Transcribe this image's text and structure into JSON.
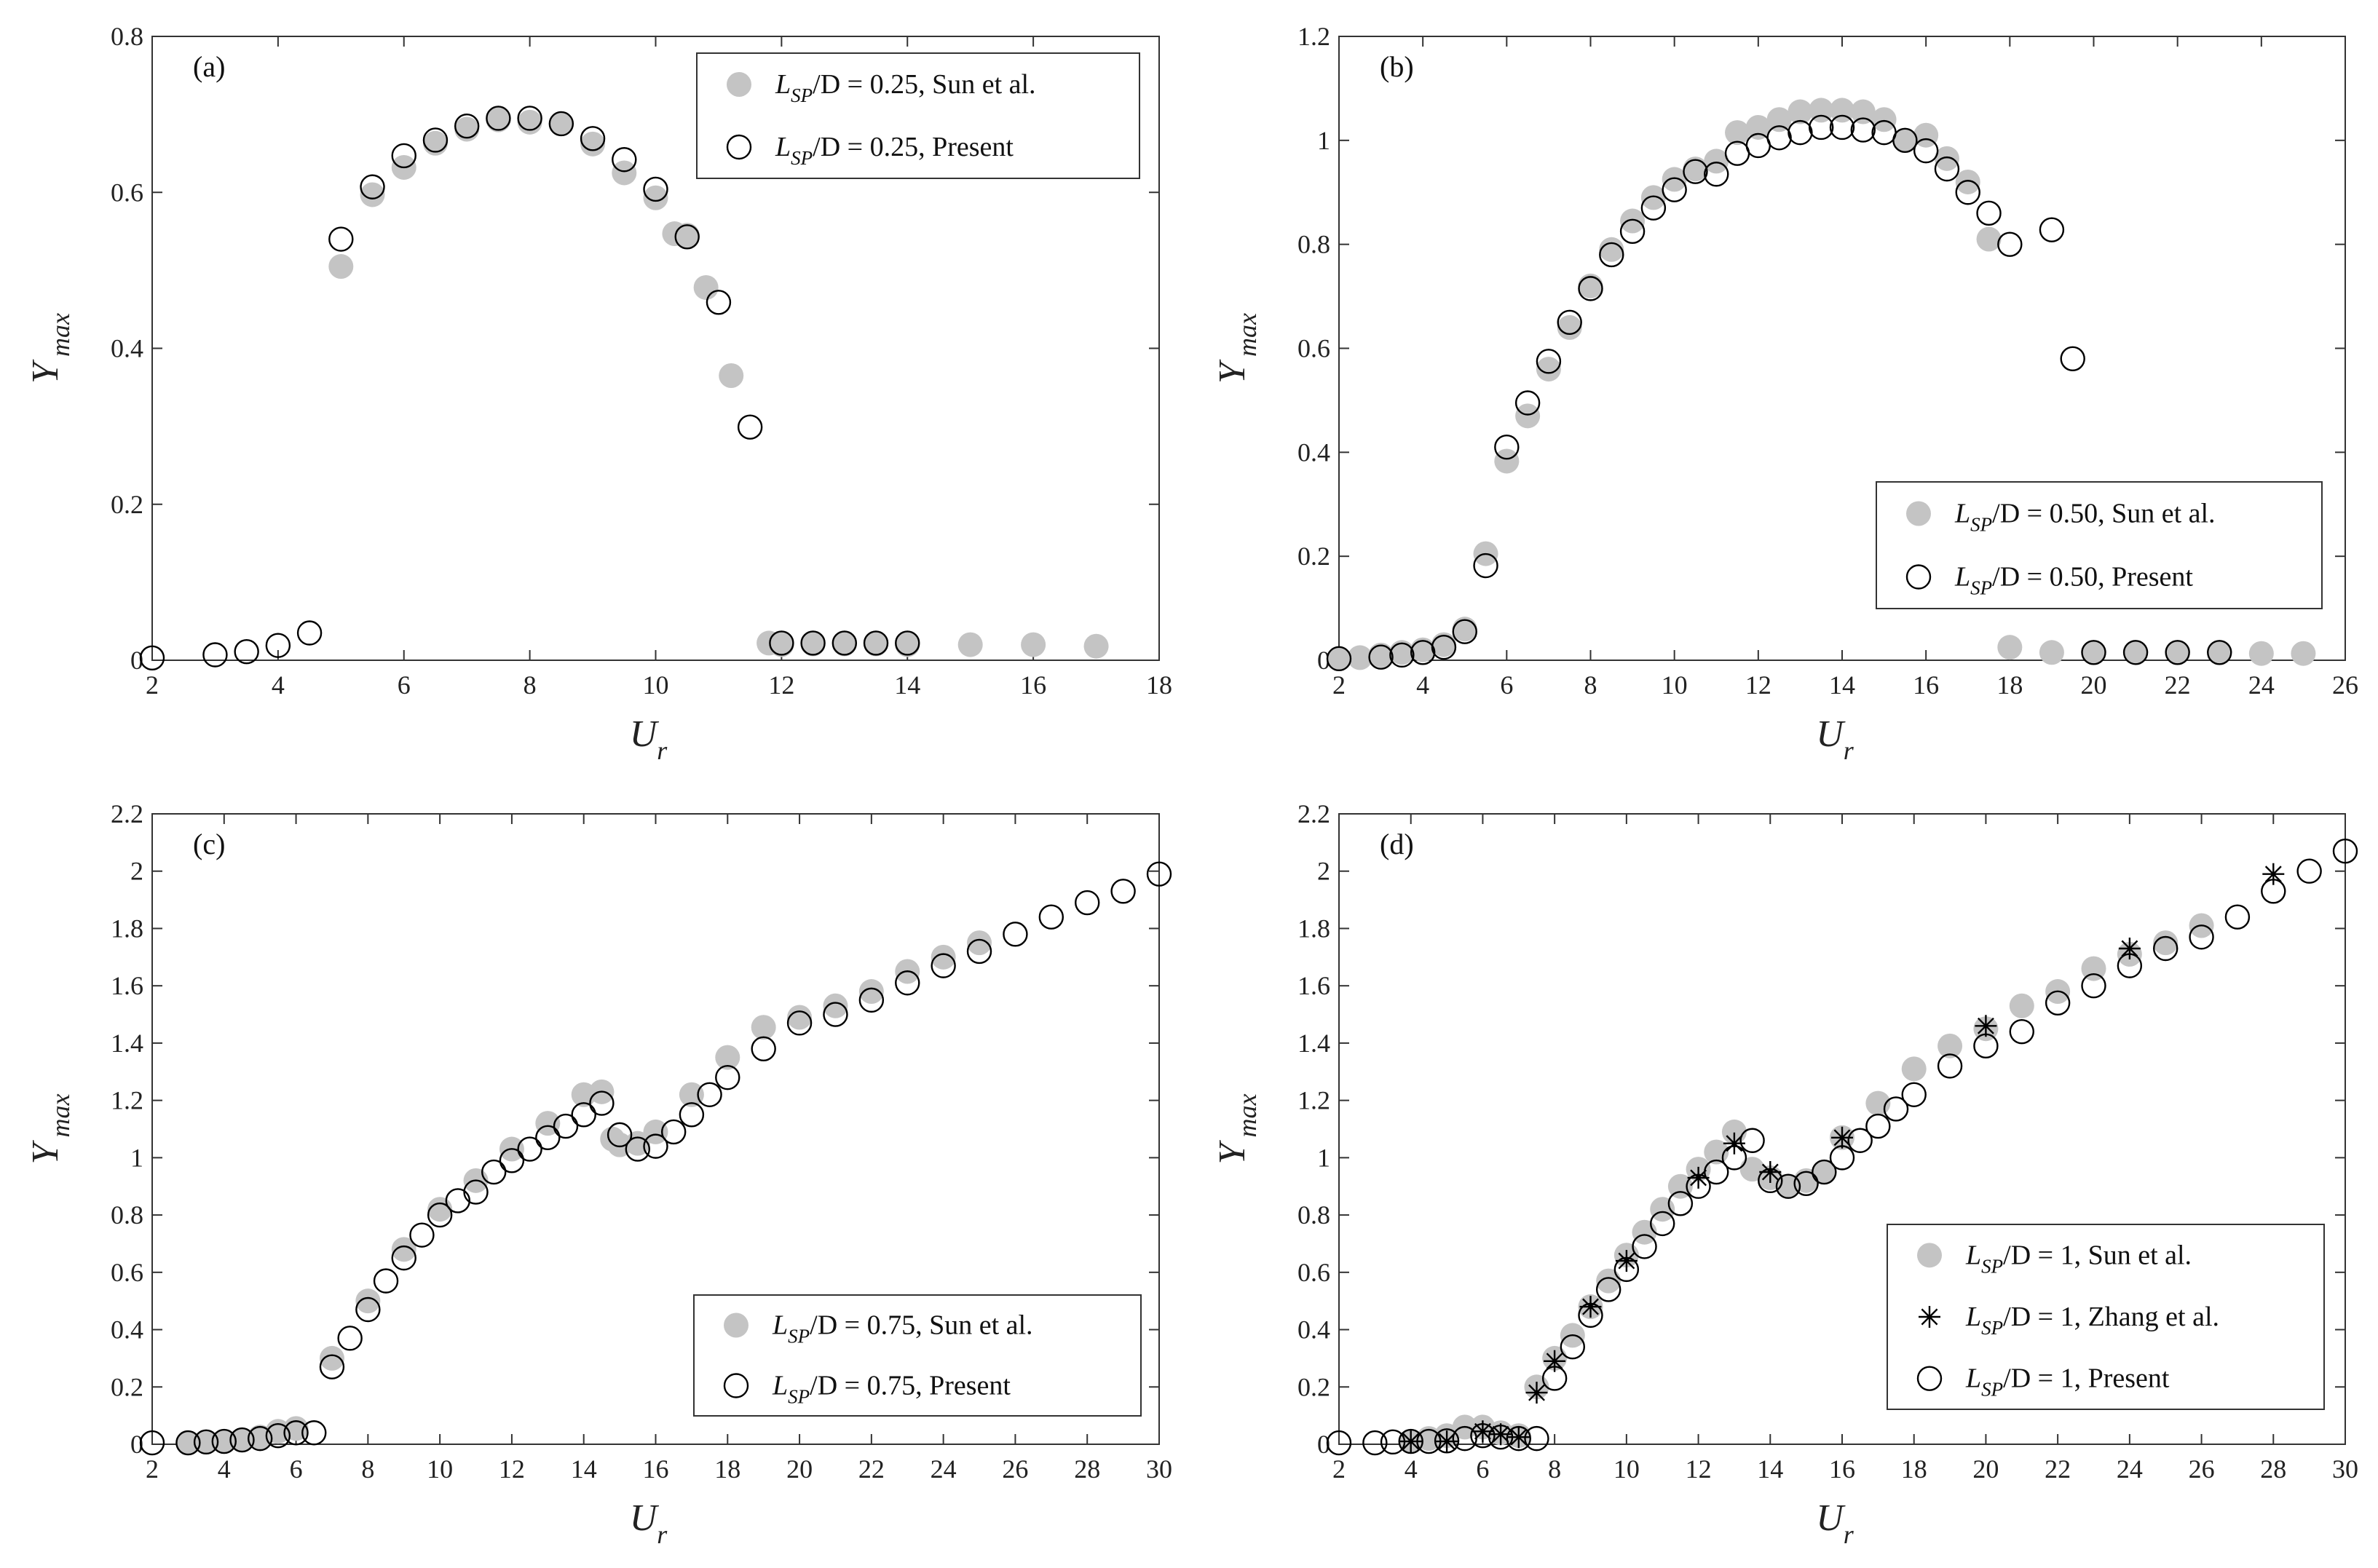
{
  "chart_data": [
    {
      "type": "scatter",
      "panel_label": "(a)",
      "xlabel": "U",
      "xlabel_sub": "r",
      "ylabel": "Y",
      "ylabel_sub": "max",
      "xlim": [
        2,
        18
      ],
      "ylim": [
        0,
        0.8
      ],
      "xticks": [
        "2",
        "4",
        "6",
        "8",
        "10",
        "12",
        "14",
        "16",
        "18"
      ],
      "yticks": [
        "0",
        "0.2",
        "0.4",
        "0.6",
        "0.8"
      ],
      "legend_position": "top-right",
      "series": [
        {
          "name": "L_SP/D = 0.25, Sun et al.",
          "marker": "filled-circle",
          "color": "#c4c4c4",
          "legend": {
            "prefix": "L",
            "sub": "SP",
            "rest": "/D = 0.25, Sun et al."
          },
          "x": [
            5.0,
            5.5,
            6.0,
            6.5,
            7.0,
            7.5,
            8.0,
            8.5,
            9.0,
            9.5,
            10.0,
            10.3,
            10.5,
            10.8,
            11.2,
            11.8,
            12.0,
            12.5,
            13.0,
            13.5,
            14.0,
            15.0,
            16.0,
            17.0
          ],
          "y": [
            0.505,
            0.597,
            0.632,
            0.663,
            0.681,
            0.693,
            0.69,
            0.688,
            0.662,
            0.625,
            0.593,
            0.547,
            0.545,
            0.478,
            0.365,
            0.022,
            0.02,
            0.021,
            0.021,
            0.021,
            0.02,
            0.02,
            0.02,
            0.018
          ]
        },
        {
          "name": "L_SP/D = 0.25, Present",
          "marker": "open-circle",
          "color": "#000000",
          "legend": {
            "prefix": "L",
            "sub": "SP",
            "rest": "/D = 0.25, Present"
          },
          "x": [
            2.0,
            3.0,
            3.5,
            4.0,
            4.5,
            5.0,
            5.5,
            6.0,
            6.5,
            7.0,
            7.5,
            8.0,
            8.5,
            9.0,
            9.5,
            10.0,
            10.5,
            11.0,
            11.5,
            12.0,
            12.5,
            13.0,
            13.5,
            14.0
          ],
          "y": [
            0.003,
            0.007,
            0.011,
            0.019,
            0.035,
            0.54,
            0.607,
            0.647,
            0.667,
            0.685,
            0.695,
            0.695,
            0.688,
            0.669,
            0.642,
            0.604,
            0.543,
            0.459,
            0.299,
            0.022,
            0.022,
            0.022,
            0.022,
            0.022
          ]
        }
      ]
    },
    {
      "type": "scatter",
      "panel_label": "(b)",
      "xlabel": "U",
      "xlabel_sub": "r",
      "ylabel": "Y",
      "ylabel_sub": "max",
      "xlim": [
        2,
        26
      ],
      "ylim": [
        0,
        1.2
      ],
      "xticks": [
        "2",
        "4",
        "6",
        "8",
        "10",
        "12",
        "14",
        "16",
        "18",
        "20",
        "22",
        "24",
        "26"
      ],
      "yticks": [
        "0",
        "0.2",
        "0.4",
        "0.6",
        "0.8",
        "1",
        "1.2"
      ],
      "legend_position": "lower-right",
      "series": [
        {
          "name": "L_SP/D = 0.50, Sun et al.",
          "marker": "filled-circle",
          "color": "#c4c4c4",
          "legend": {
            "prefix": "L",
            "sub": "SP",
            "rest": "/D = 0.50, Sun et al."
          },
          "x": [
            2.0,
            2.5,
            3.0,
            3.5,
            4.0,
            4.5,
            5.0,
            5.5,
            6.0,
            6.5,
            7.0,
            7.5,
            8.0,
            8.5,
            9.0,
            9.5,
            10.0,
            10.5,
            11.0,
            11.5,
            12.0,
            12.5,
            13.0,
            13.5,
            14.0,
            14.5,
            15.0,
            15.5,
            16.0,
            16.5,
            17.0,
            17.5,
            18.0,
            19.0,
            20.0,
            21.0,
            22.0,
            23.0,
            24.0,
            25.0
          ],
          "y": [
            0.003,
            0.005,
            0.01,
            0.015,
            0.02,
            0.03,
            0.06,
            0.205,
            0.383,
            0.47,
            0.56,
            0.64,
            0.72,
            0.79,
            0.845,
            0.89,
            0.925,
            0.945,
            0.96,
            1.015,
            1.025,
            1.04,
            1.055,
            1.058,
            1.058,
            1.055,
            1.04,
            1.0,
            1.01,
            0.965,
            0.92,
            0.81,
            0.025,
            0.015,
            0.015,
            0.015,
            0.015,
            0.015,
            0.013,
            0.013
          ]
        },
        {
          "name": "L_SP/D = 0.50, Present",
          "marker": "open-circle",
          "color": "#000000",
          "legend": {
            "prefix": "L",
            "sub": "SP",
            "rest": "/D = 0.50, Present"
          },
          "x": [
            2.0,
            3.0,
            3.5,
            4.0,
            4.5,
            5.0,
            5.5,
            6.0,
            6.5,
            7.0,
            7.5,
            8.0,
            8.5,
            9.0,
            9.5,
            10.0,
            10.5,
            11.0,
            11.5,
            12.0,
            12.5,
            13.0,
            13.5,
            14.0,
            14.5,
            15.0,
            15.5,
            16.0,
            16.5,
            17.0,
            17.5,
            18.0,
            19.0,
            19.5,
            20.0,
            21.0,
            22.0,
            23.0
          ],
          "y": [
            0.003,
            0.006,
            0.01,
            0.015,
            0.025,
            0.055,
            0.182,
            0.41,
            0.495,
            0.575,
            0.65,
            0.715,
            0.78,
            0.825,
            0.87,
            0.905,
            0.94,
            0.935,
            0.975,
            0.99,
            1.005,
            1.015,
            1.025,
            1.025,
            1.02,
            1.015,
            1.0,
            0.98,
            0.945,
            0.9,
            0.86,
            0.8,
            0.828,
            0.58,
            0.015,
            0.015,
            0.015,
            0.015
          ]
        }
      ]
    },
    {
      "type": "scatter",
      "panel_label": "(c)",
      "xlabel": "U",
      "xlabel_sub": "r",
      "ylabel": "Y",
      "ylabel_sub": "max",
      "xlim": [
        2,
        30
      ],
      "ylim": [
        0,
        2.2
      ],
      "xticks": [
        "2",
        "4",
        "6",
        "8",
        "10",
        "12",
        "14",
        "16",
        "18",
        "20",
        "22",
        "24",
        "26",
        "28",
        "30"
      ],
      "yticks": [
        "0",
        "0.2",
        "0.4",
        "0.6",
        "0.8",
        "1",
        "1.2",
        "1.4",
        "1.6",
        "1.8",
        "2",
        "2.2"
      ],
      "legend_position": "lower-right",
      "series": [
        {
          "name": "L_SP/D = 0.75, Sun et al.",
          "marker": "filled-circle",
          "color": "#c4c4c4",
          "legend": {
            "prefix": "L",
            "sub": "SP",
            "rest": "/D = 0.75, Sun et al."
          },
          "x": [
            3.0,
            3.5,
            4.0,
            4.5,
            5.0,
            5.5,
            6.0,
            7.0,
            8.0,
            9.0,
            10.0,
            11.0,
            12.0,
            13.0,
            14.0,
            14.5,
            14.8,
            15.0,
            15.5,
            16.0,
            17.0,
            18.0,
            19.0,
            20.0,
            21.0,
            22.0,
            23.0,
            24.0,
            25.0
          ],
          "y": [
            0.005,
            0.008,
            0.01,
            0.015,
            0.025,
            0.045,
            0.055,
            0.3,
            0.5,
            0.68,
            0.82,
            0.92,
            1.03,
            1.12,
            1.22,
            1.23,
            1.065,
            1.045,
            1.05,
            1.09,
            1.22,
            1.35,
            1.455,
            1.49,
            1.53,
            1.58,
            1.65,
            1.7,
            1.75
          ]
        },
        {
          "name": "L_SP/D = 0.75, Present",
          "marker": "open-circle",
          "color": "#000000",
          "legend": {
            "prefix": "L",
            "sub": "SP",
            "rest": "/D = 0.75, Present"
          },
          "x": [
            2.0,
            3.0,
            3.5,
            4.0,
            4.5,
            5.0,
            5.5,
            6.0,
            6.5,
            7.0,
            7.5,
            8.0,
            8.5,
            9.0,
            9.5,
            10.0,
            10.5,
            11.0,
            11.5,
            12.0,
            12.5,
            13.0,
            13.5,
            14.0,
            14.5,
            15.0,
            15.5,
            16.0,
            16.5,
            17.0,
            17.5,
            18.0,
            19.0,
            20.0,
            21.0,
            22.0,
            23.0,
            24.0,
            25.0,
            26.0,
            27.0,
            28.0,
            29.0,
            30.0
          ],
          "y": [
            0.005,
            0.005,
            0.008,
            0.01,
            0.015,
            0.02,
            0.03,
            0.04,
            0.04,
            0.27,
            0.37,
            0.47,
            0.57,
            0.65,
            0.73,
            0.8,
            0.85,
            0.88,
            0.95,
            0.99,
            1.03,
            1.07,
            1.11,
            1.15,
            1.19,
            1.08,
            1.03,
            1.04,
            1.09,
            1.15,
            1.22,
            1.28,
            1.38,
            1.47,
            1.5,
            1.55,
            1.61,
            1.67,
            1.72,
            1.78,
            1.84,
            1.89,
            1.93,
            1.99
          ]
        }
      ]
    },
    {
      "type": "scatter",
      "panel_label": "(d)",
      "xlabel": "U",
      "xlabel_sub": "r",
      "ylabel": "Y",
      "ylabel_sub": "max",
      "xlim": [
        2,
        30
      ],
      "ylim": [
        0,
        2.2
      ],
      "xticks": [
        "2",
        "4",
        "6",
        "8",
        "10",
        "12",
        "14",
        "16",
        "18",
        "20",
        "22",
        "24",
        "26",
        "28",
        "30"
      ],
      "yticks": [
        "0",
        "0.2",
        "0.4",
        "0.6",
        "0.8",
        "1",
        "1.2",
        "1.4",
        "1.6",
        "1.8",
        "2",
        "2.2"
      ],
      "legend_position": "lower-right",
      "series": [
        {
          "name": "L_SP/D = 1, Sun et al.",
          "marker": "filled-circle",
          "color": "#c4c4c4",
          "legend": {
            "prefix": "L",
            "sub": "SP",
            "rest": "/D = 1, Sun et al."
          },
          "x": [
            4.0,
            4.5,
            5.0,
            5.5,
            6.0,
            6.5,
            7.0,
            7.5,
            8.0,
            8.5,
            9.0,
            9.5,
            10.0,
            10.5,
            11.0,
            11.5,
            12.0,
            12.5,
            13.0,
            13.5,
            14.0,
            14.5,
            15.0,
            15.5,
            16.0,
            17.0,
            18.0,
            19.0,
            20.0,
            21.0,
            22.0,
            23.0,
            24.0,
            25.0,
            26.0
          ],
          "y": [
            0.01,
            0.02,
            0.03,
            0.06,
            0.06,
            0.04,
            0.03,
            0.2,
            0.3,
            0.38,
            0.48,
            0.57,
            0.66,
            0.74,
            0.82,
            0.9,
            0.96,
            1.02,
            1.09,
            0.96,
            0.93,
            0.9,
            0.92,
            0.95,
            1.07,
            1.19,
            1.31,
            1.39,
            1.45,
            1.53,
            1.58,
            1.66,
            1.71,
            1.75,
            1.81
          ]
        },
        {
          "name": "L_SP/D = 1, Zhang et al.",
          "marker": "asterisk",
          "color": "#000000",
          "legend": {
            "prefix": "L",
            "sub": "SP",
            "rest": "/D = 1, Zhang et al."
          },
          "x": [
            4.0,
            5.0,
            6.0,
            6.5,
            7.0,
            7.5,
            8.0,
            9.0,
            10.0,
            12.0,
            13.0,
            14.0,
            16.0,
            20.0,
            24.0,
            28.0
          ],
          "y": [
            0.01,
            0.01,
            0.045,
            0.035,
            0.025,
            0.18,
            0.29,
            0.48,
            0.64,
            0.93,
            1.05,
            0.95,
            1.07,
            1.46,
            1.73,
            1.99
          ]
        },
        {
          "name": "L_SP/D = 1, Present",
          "marker": "open-circle",
          "color": "#000000",
          "legend": {
            "prefix": "L",
            "sub": "SP",
            "rest": "/D = 1, Present"
          },
          "x": [
            2.0,
            3.0,
            3.5,
            4.0,
            4.5,
            5.0,
            5.5,
            6.0,
            6.5,
            7.0,
            7.5,
            8.0,
            8.5,
            9.0,
            9.5,
            10.0,
            10.5,
            11.0,
            11.5,
            12.0,
            12.5,
            13.0,
            13.5,
            14.0,
            14.5,
            15.0,
            15.5,
            16.0,
            16.5,
            17.0,
            17.5,
            18.0,
            19.0,
            20.0,
            21.0,
            22.0,
            23.0,
            24.0,
            25.0,
            26.0,
            27.0,
            28.0,
            29.0,
            30.0
          ],
          "y": [
            0.005,
            0.005,
            0.008,
            0.01,
            0.01,
            0.012,
            0.02,
            0.03,
            0.025,
            0.02,
            0.02,
            0.23,
            0.34,
            0.45,
            0.54,
            0.61,
            0.69,
            0.77,
            0.84,
            0.9,
            0.95,
            1.0,
            1.06,
            0.92,
            0.9,
            0.91,
            0.95,
            1.0,
            1.06,
            1.11,
            1.17,
            1.22,
            1.32,
            1.39,
            1.44,
            1.54,
            1.6,
            1.67,
            1.73,
            1.77,
            1.84,
            1.93,
            2.0,
            2.07
          ]
        }
      ]
    }
  ]
}
